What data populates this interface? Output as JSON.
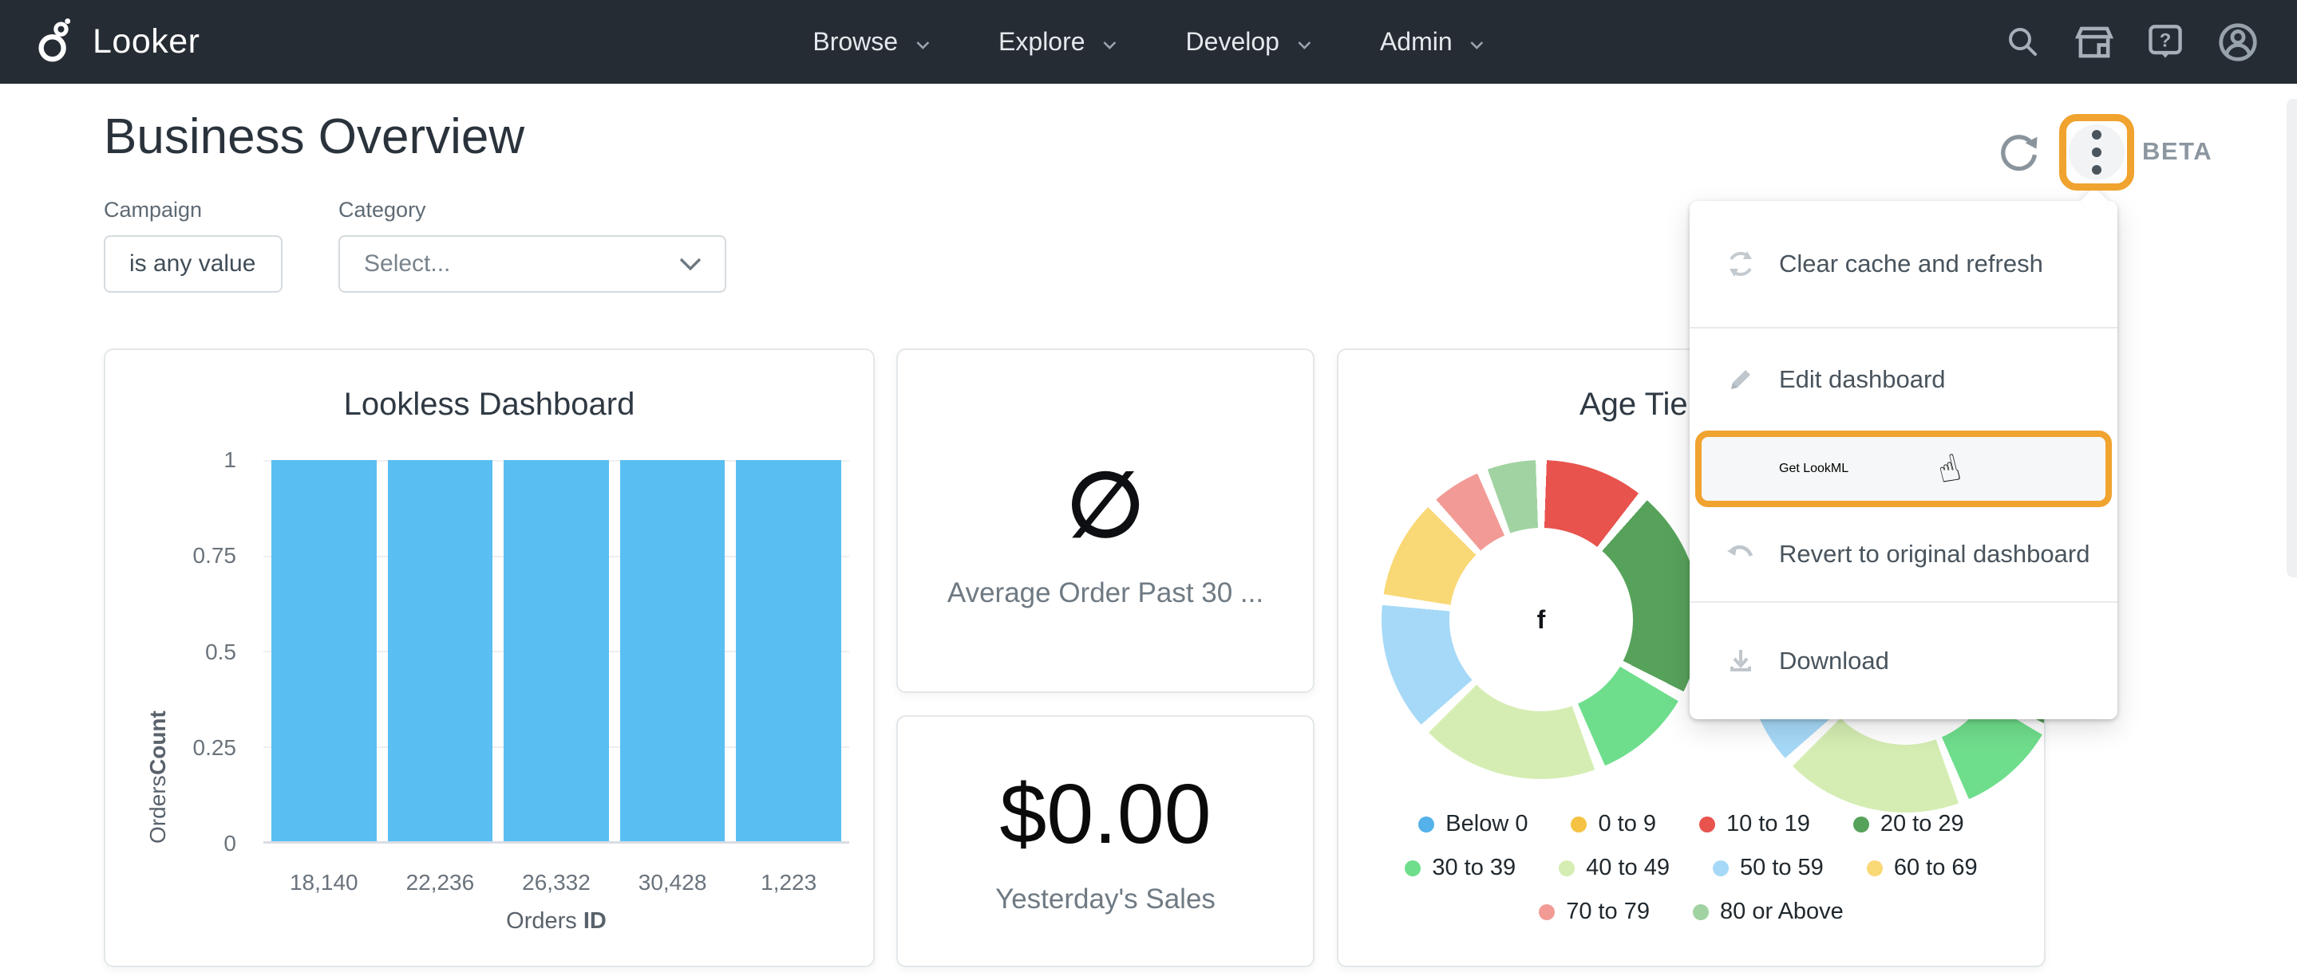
{
  "colors": {
    "nav_bg": "#262C33",
    "accent_orange": "#F0A32F",
    "bar_blue": "#59BFF2",
    "tile_border": "#E3E7EA"
  },
  "nav": {
    "brand": "Looker",
    "items": [
      {
        "label": "Browse"
      },
      {
        "label": "Explore"
      },
      {
        "label": "Develop"
      },
      {
        "label": "Admin"
      }
    ],
    "right_icons": [
      "search-icon",
      "marketplace-icon",
      "help-icon",
      "account-icon"
    ]
  },
  "header": {
    "title": "Business Overview",
    "beta": "BETA"
  },
  "filters": {
    "campaign": {
      "label": "Campaign",
      "value": "is any value"
    },
    "category": {
      "label": "Category",
      "value": "Select..."
    }
  },
  "menu": {
    "cursor_glyph": "☝",
    "items": [
      {
        "label": "Clear cache and refresh",
        "icon": "clear-cache-icon",
        "highlighted": false
      },
      {
        "label": "Edit dashboard",
        "icon": "pencil-icon",
        "highlighted": false
      },
      {
        "label": "Get LookML",
        "icon": "none",
        "highlighted": true
      },
      {
        "label": "Revert to original dashboard",
        "icon": "undo-icon",
        "highlighted": false
      },
      {
        "label": "Download",
        "icon": "download-icon",
        "highlighted": false
      }
    ]
  },
  "chart_data": [
    {
      "type": "bar",
      "title": "Lookless Dashboard",
      "categories": [
        "18,140",
        "22,236",
        "26,332",
        "30,428",
        "1,223"
      ],
      "values": [
        1,
        1,
        1,
        1,
        1
      ],
      "xlabel_regular": "Orders ",
      "xlabel_bold": "ID",
      "ylabel_regular": "Orders ",
      "ylabel_bold": "Count",
      "ylim": [
        0,
        1
      ],
      "yticks": [
        0,
        0.25,
        0.5,
        0.75,
        1
      ],
      "bar_color": "#59BFF2",
      "grid": true,
      "legend_position": "none"
    },
    {
      "type": "single_value",
      "value": "∅",
      "label": "Average Order Past 30 ..."
    },
    {
      "type": "single_value",
      "value": "$0.00",
      "label": "Yesterday's Sales"
    },
    {
      "type": "pie",
      "subtype": "donut",
      "title": "Age Tie",
      "title_note": "title truncated by open menu overlay",
      "center_label": "f",
      "segments": [
        {
          "label": "10 to 19",
          "pct": 11,
          "color": "#E8534E"
        },
        {
          "label": "20 to 29",
          "pct": 22,
          "color": "#57A25B"
        },
        {
          "label": "30 to 39",
          "pct": 11,
          "color": "#6FDE8C"
        },
        {
          "label": "40 to 49",
          "pct": 19,
          "color": "#D5EDB3"
        },
        {
          "label": "50 to 59",
          "pct": 14,
          "color": "#A6D9F7"
        },
        {
          "label": "60 to 69",
          "pct": 11,
          "color": "#F9D876"
        },
        {
          "label": "70 to 79",
          "pct": 6,
          "color": "#F29B96"
        },
        {
          "label": "80 or Above",
          "pct": 6,
          "color": "#A1D3A2"
        }
      ],
      "second_donut_note": "second donut partially visible behind open menu, bottom arc only",
      "legend": [
        {
          "label": "Below 0",
          "color": "#55B1E9"
        },
        {
          "label": "0 to 9",
          "color": "#F6C243"
        },
        {
          "label": "10 to 19",
          "color": "#E8534E"
        },
        {
          "label": "20 to 29",
          "color": "#57A25B"
        },
        {
          "label": "30 to 39",
          "color": "#6FDE8C"
        },
        {
          "label": "40 to 49",
          "color": "#D5EDB3"
        },
        {
          "label": "50 to 59",
          "color": "#A6D9F7"
        },
        {
          "label": "60 to 69",
          "color": "#F9D876"
        },
        {
          "label": "70 to 79",
          "color": "#F29B96"
        },
        {
          "label": "80 or Above",
          "color": "#A1D3A2"
        }
      ],
      "legend_rows": [
        4,
        4,
        2
      ],
      "legend_position": "bottom"
    }
  ]
}
